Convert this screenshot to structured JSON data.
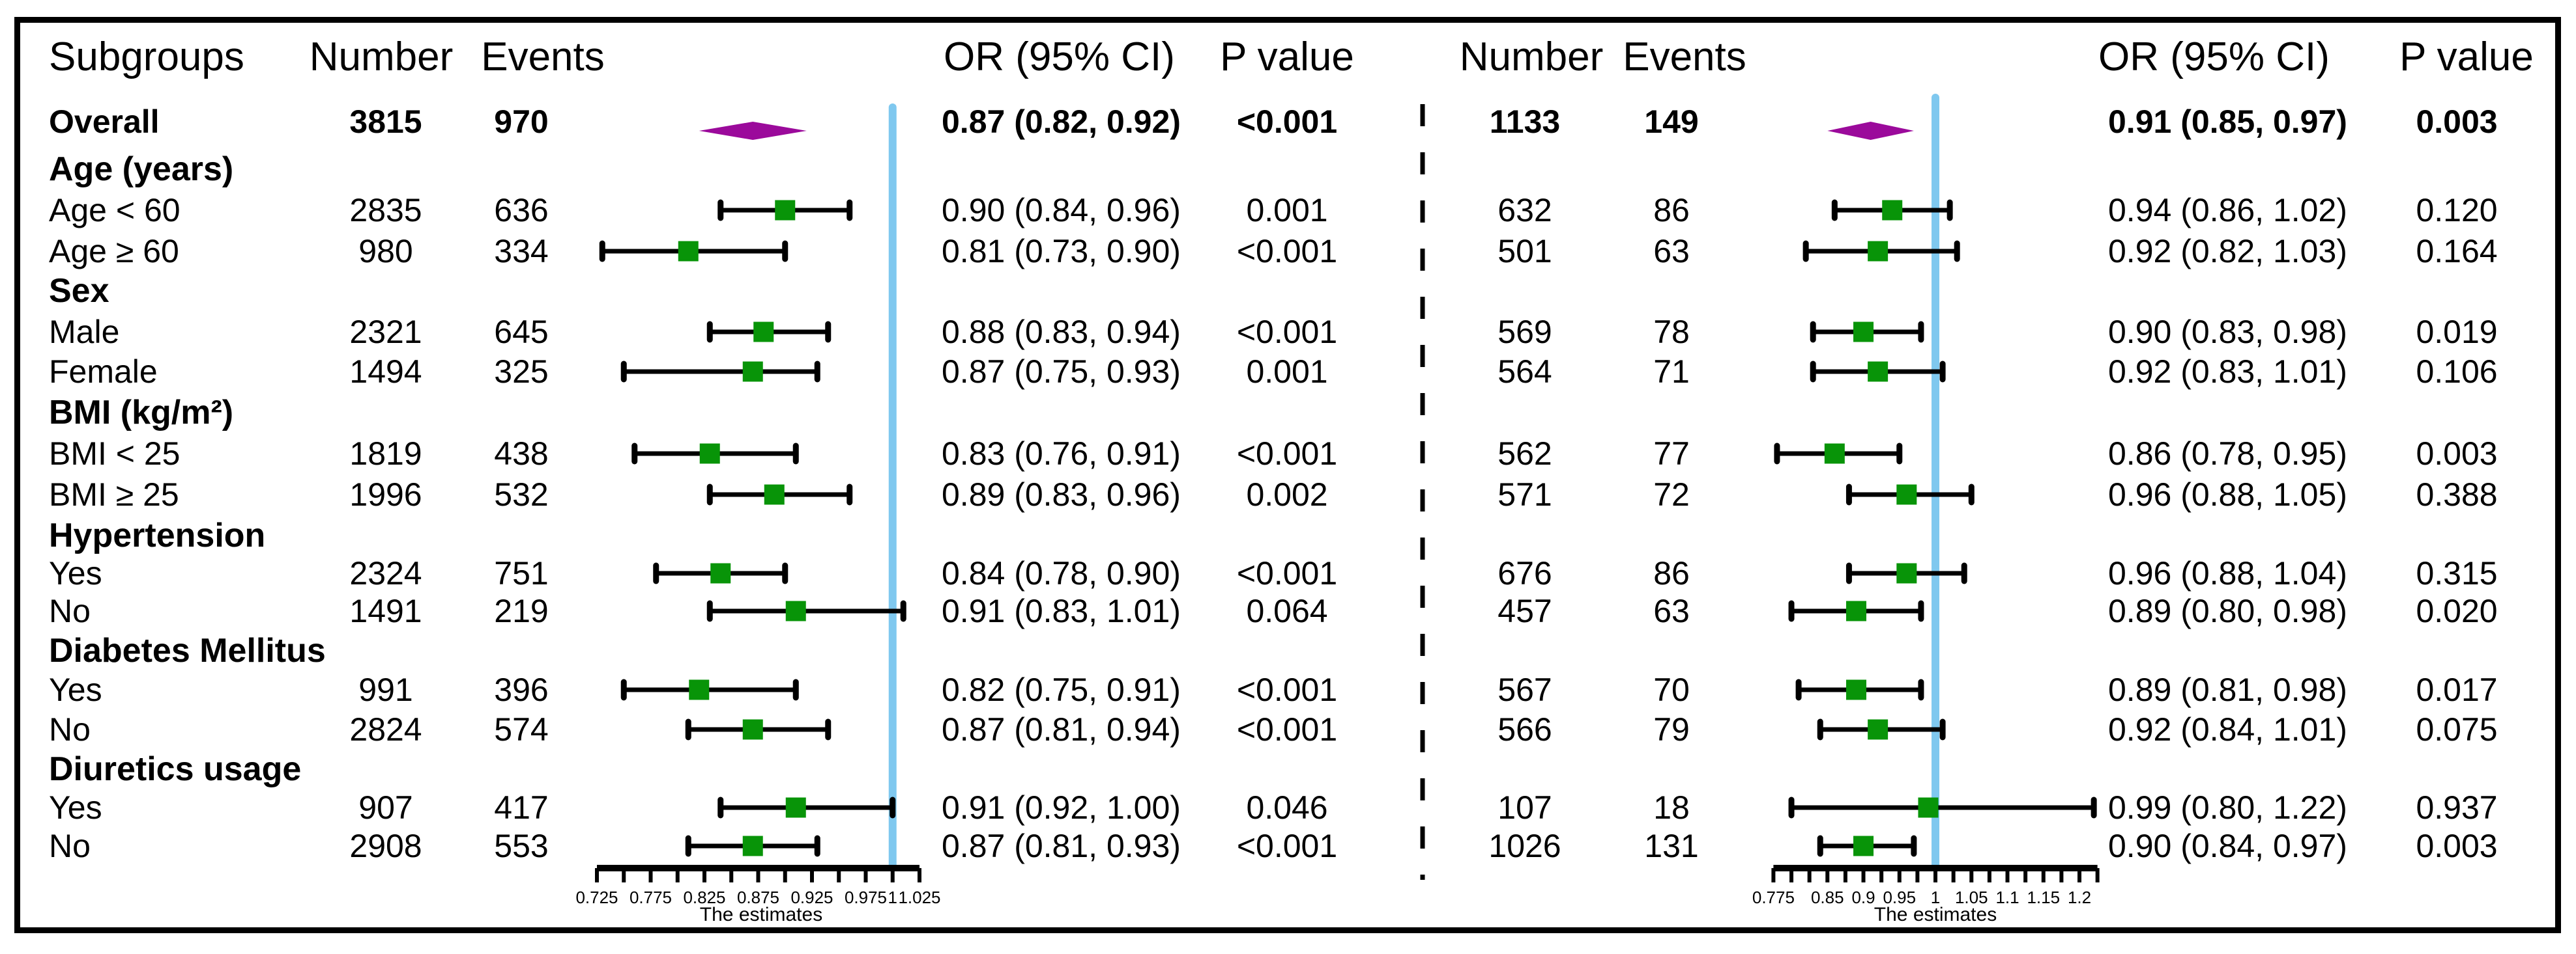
{
  "colors": {
    "marker_green": "#089408",
    "diamond_purple": "#9b0a9b",
    "ref_line_blue": "#7fc8ef",
    "axis_black": "#000000"
  },
  "chart_data": {
    "type": "forest",
    "subgroups_header": "Subgroups",
    "panels": [
      {
        "name": "left",
        "headers": {
          "number": "Number",
          "events": "Events",
          "or_ci": "OR (95% CI)",
          "p": "P value"
        },
        "axis": {
          "title": "The estimates",
          "ref_line": 1,
          "min": 0.725,
          "max": 1.025,
          "minor_step": 0.025,
          "tick_labels": [
            "0.725",
            "0.775",
            "0.825",
            "0.875",
            "0.925",
            "0.975",
            "1",
            "1.025"
          ],
          "tick_values": [
            0.725,
            0.775,
            0.825,
            0.875,
            0.925,
            0.975,
            1,
            1.025
          ]
        }
      },
      {
        "name": "right",
        "headers": {
          "number": "Number",
          "events": "Events",
          "or_ci": "OR (95% CI)",
          "p": "P value"
        },
        "axis": {
          "title": "The estimates",
          "ref_line": 1,
          "min": 0.775,
          "max": 1.225,
          "minor_step": 0.025,
          "tick_labels": [
            "0.775",
            "0.85",
            "0.9",
            "0.95",
            "1",
            "1.05",
            "1.1",
            "1.15",
            "1.2"
          ],
          "tick_values": [
            0.775,
            0.85,
            0.9,
            0.95,
            1,
            1.05,
            1.1,
            1.15,
            1.2
          ]
        }
      }
    ],
    "rows": [
      {
        "type": "overall",
        "label": "Overall",
        "left": {
          "number": "3815",
          "events": "970",
          "or": 0.87,
          "lo": 0.82,
          "hi": 0.92,
          "or_ci": "0.87 (0.82, 0.92)",
          "p": "<0.001"
        },
        "right": {
          "number": "1133",
          "events": "149",
          "or": 0.91,
          "lo": 0.85,
          "hi": 0.97,
          "or_ci": "0.91 (0.85, 0.97)",
          "p": "0.003"
        }
      },
      {
        "type": "section",
        "label": "Age (years)"
      },
      {
        "type": "data",
        "label": "Age < 60",
        "left": {
          "number": "2835",
          "events": "636",
          "or": 0.9,
          "lo": 0.84,
          "hi": 0.96,
          "or_ci": "0.90 (0.84, 0.96)",
          "p": "0.001"
        },
        "right": {
          "number": "632",
          "events": "86",
          "or": 0.94,
          "lo": 0.86,
          "hi": 1.02,
          "or_ci": "0.94 (0.86, 1.02)",
          "p": "0.120"
        }
      },
      {
        "type": "data",
        "label": "Age ≥ 60",
        "left": {
          "number": "980",
          "events": "334",
          "or": 0.81,
          "lo": 0.73,
          "hi": 0.9,
          "or_ci": "0.81 (0.73, 0.90)",
          "p": "<0.001"
        },
        "right": {
          "number": "501",
          "events": "63",
          "or": 0.92,
          "lo": 0.82,
          "hi": 1.03,
          "or_ci": "0.92 (0.82, 1.03)",
          "p": "0.164"
        }
      },
      {
        "type": "section",
        "label": "Sex"
      },
      {
        "type": "data",
        "label": "Male",
        "left": {
          "number": "2321",
          "events": "645",
          "or": 0.88,
          "lo": 0.83,
          "hi": 0.94,
          "or_ci": "0.88 (0.83, 0.94)",
          "p": "<0.001"
        },
        "right": {
          "number": "569",
          "events": "78",
          "or": 0.9,
          "lo": 0.83,
          "hi": 0.98,
          "or_ci": "0.90 (0.83, 0.98)",
          "p": "0.019"
        }
      },
      {
        "type": "data",
        "label": "Female",
        "left": {
          "number": "1494",
          "events": "325",
          "or": 0.87,
          "lo": 0.75,
          "hi": 0.93,
          "or_ci": "0.87 (0.75, 0.93)",
          "p": "0.001"
        },
        "right": {
          "number": "564",
          "events": "71",
          "or": 0.92,
          "lo": 0.83,
          "hi": 1.01,
          "or_ci": "0.92 (0.83, 1.01)",
          "p": "0.106"
        }
      },
      {
        "type": "section",
        "label": "BMI (kg/m²)"
      },
      {
        "type": "data",
        "label": "BMI < 25",
        "left": {
          "number": "1819",
          "events": "438",
          "or": 0.83,
          "lo": 0.76,
          "hi": 0.91,
          "or_ci": "0.83 (0.76, 0.91)",
          "p": "<0.001"
        },
        "right": {
          "number": "562",
          "events": "77",
          "or": 0.86,
          "lo": 0.78,
          "hi": 0.95,
          "or_ci": "0.86 (0.78, 0.95)",
          "p": "0.003"
        }
      },
      {
        "type": "data",
        "label": "BMI ≥ 25",
        "left": {
          "number": "1996",
          "events": "532",
          "or": 0.89,
          "lo": 0.83,
          "hi": 0.96,
          "or_ci": "0.89 (0.83, 0.96)",
          "p": "0.002"
        },
        "right": {
          "number": "571",
          "events": "72",
          "or": 0.96,
          "lo": 0.88,
          "hi": 1.05,
          "or_ci": "0.96 (0.88, 1.05)",
          "p": "0.388"
        }
      },
      {
        "type": "section",
        "label": "Hypertension"
      },
      {
        "type": "data",
        "label": "Yes",
        "left": {
          "number": "2324",
          "events": "751",
          "or": 0.84,
          "lo": 0.78,
          "hi": 0.9,
          "or_ci": "0.84 (0.78, 0.90)",
          "p": "<0.001"
        },
        "right": {
          "number": "676",
          "events": "86",
          "or": 0.96,
          "lo": 0.88,
          "hi": 1.04,
          "or_ci": "0.96 (0.88, 1.04)",
          "p": "0.315"
        }
      },
      {
        "type": "data",
        "label": "No",
        "left": {
          "number": "1491",
          "events": "219",
          "or": 0.91,
          "lo": 0.83,
          "hi": 1.01,
          "or_ci": "0.91 (0.83, 1.01)",
          "p": "0.064"
        },
        "right": {
          "number": "457",
          "events": "63",
          "or": 0.89,
          "lo": 0.8,
          "hi": 0.98,
          "or_ci": "0.89 (0.80, 0.98)",
          "p": "0.020"
        }
      },
      {
        "type": "section",
        "label": "Diabetes Mellitus"
      },
      {
        "type": "data",
        "label": "Yes",
        "left": {
          "number": "991",
          "events": "396",
          "or": 0.82,
          "lo": 0.75,
          "hi": 0.91,
          "or_ci": "0.82 (0.75, 0.91)",
          "p": "<0.001"
        },
        "right": {
          "number": "567",
          "events": "70",
          "or": 0.89,
          "lo": 0.81,
          "hi": 0.98,
          "or_ci": "0.89 (0.81, 0.98)",
          "p": "0.017"
        }
      },
      {
        "type": "data",
        "label": "No",
        "left": {
          "number": "2824",
          "events": "574",
          "or": 0.87,
          "lo": 0.81,
          "hi": 0.94,
          "or_ci": "0.87 (0.81, 0.94)",
          "p": "<0.001"
        },
        "right": {
          "number": "566",
          "events": "79",
          "or": 0.92,
          "lo": 0.84,
          "hi": 1.01,
          "or_ci": "0.92 (0.84, 1.01)",
          "p": "0.075"
        }
      },
      {
        "type": "section",
        "label": "Diuretics usage"
      },
      {
        "type": "data",
        "label": "Yes",
        "left": {
          "number": "907",
          "events": "417",
          "or": 0.91,
          "lo": 0.84,
          "hi": 1.0,
          "or_ci": "0.91 (0.92, 1.00)",
          "p": "0.046"
        },
        "right": {
          "number": "107",
          "events": "18",
          "or": 0.99,
          "lo": 0.8,
          "hi": 1.22,
          "or_ci": "0.99 (0.80, 1.22)",
          "p": "0.937"
        }
      },
      {
        "type": "data",
        "label": "No",
        "left": {
          "number": "2908",
          "events": "553",
          "or": 0.87,
          "lo": 0.81,
          "hi": 0.93,
          "or_ci": "0.87 (0.81, 0.93)",
          "p": "<0.001"
        },
        "right": {
          "number": "1026",
          "events": "131",
          "or": 0.9,
          "lo": 0.84,
          "hi": 0.97,
          "or_ci": "0.90 (0.84, 0.97)",
          "p": "0.003"
        }
      }
    ]
  }
}
